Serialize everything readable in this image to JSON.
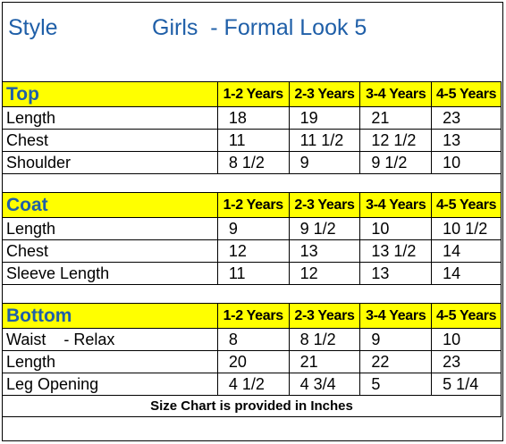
{
  "title": {
    "style": "Style",
    "main": "Girls  - Formal Look 5"
  },
  "age_headers": [
    "1-2 Years",
    "2-3 Years",
    "3-4 Years",
    "4-5 Years"
  ],
  "sections": {
    "top": {
      "name": "Top",
      "rows": [
        {
          "label": "Length",
          "values": [
            "18",
            "19",
            "21",
            "23"
          ]
        },
        {
          "label": "Chest",
          "values": [
            "11",
            "11 1/2",
            "12 1/2",
            "13"
          ]
        },
        {
          "label": "Shoulder",
          "values": [
            "8 1/2",
            "9",
            "9 1/2",
            "10"
          ]
        }
      ]
    },
    "coat": {
      "name": "Coat",
      "rows": [
        {
          "label": "Length",
          "values": [
            "9",
            "9 1/2",
            "10",
            "10 1/2"
          ]
        },
        {
          "label": "Chest",
          "values": [
            "12",
            "13",
            "13 1/2",
            "14"
          ]
        },
        {
          "label": "Sleeve Length",
          "values": [
            "11",
            "12",
            "13",
            "14"
          ]
        }
      ]
    },
    "bottom": {
      "name": "Bottom",
      "rows": [
        {
          "label": "Waist    - Relax",
          "values": [
            "8",
            "8 1/2",
            "9",
            "10"
          ]
        },
        {
          "label": "Length",
          "values": [
            "20",
            "21",
            "22",
            "23"
          ]
        },
        {
          "label": "Leg Opening",
          "values": [
            "4 1/2",
            "4 3/4",
            "5",
            "5 1/4"
          ]
        }
      ]
    }
  },
  "footer": "Size Chart is provided in Inches",
  "colors": {
    "header_fill": "#ffff00",
    "title_text": "#1f5fa8"
  }
}
